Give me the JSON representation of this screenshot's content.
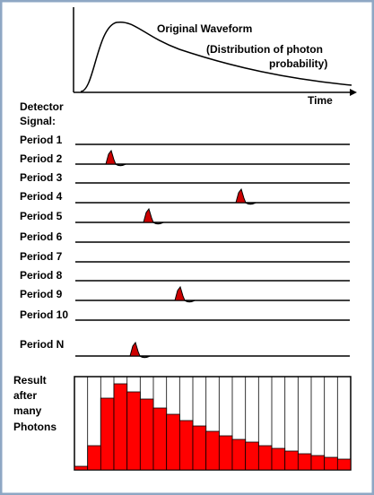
{
  "waveform": {
    "title": "Original Waveform",
    "note_line1": "(Distribution of photon",
    "note_line2": "probability)",
    "axis_label": "Time"
  },
  "detector": {
    "label_line1": "Detector",
    "label_line2": "Signal:",
    "periods": [
      "Period 1",
      "Period 2",
      "Period 3",
      "Period 4",
      "Period 5",
      "Period 6",
      "Period 7",
      "Period 8",
      "Period 9",
      "Period 10",
      "Period N"
    ]
  },
  "result": {
    "lines": [
      "Result",
      "after",
      "many",
      "Photons"
    ]
  }
}
